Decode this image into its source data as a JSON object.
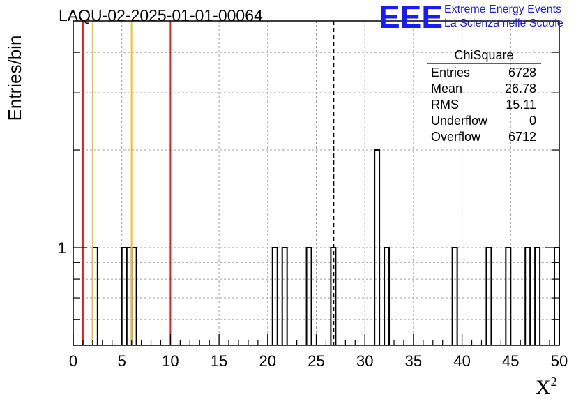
{
  "chart_data": {
    "type": "bar",
    "title": "LAQU-02-2025-01-01-00064",
    "xlabel": "X",
    "xlabel_sup": "2",
    "ylabel": "Entries/bin",
    "xlim": [
      0,
      50
    ],
    "ylim": [
      0.5,
      5
    ],
    "y_scale": "log",
    "grid": true,
    "x_ticks": [
      "0",
      "5",
      "10",
      "15",
      "20",
      "25",
      "30",
      "35",
      "40",
      "45",
      "50"
    ],
    "y_tick_labels": [
      {
        "value": 1,
        "label": "1"
      }
    ],
    "bin_width": 0.5,
    "bins": [
      {
        "x": 2.0,
        "count": 1
      },
      {
        "x": 5.0,
        "count": 1
      },
      {
        "x": 5.5,
        "count": 1
      },
      {
        "x": 6.0,
        "count": 1
      },
      {
        "x": 20.5,
        "count": 1
      },
      {
        "x": 21.5,
        "count": 1
      },
      {
        "x": 24.0,
        "count": 1
      },
      {
        "x": 26.5,
        "count": 1
      },
      {
        "x": 31.0,
        "count": 2
      },
      {
        "x": 32.0,
        "count": 1
      },
      {
        "x": 39.0,
        "count": 1
      },
      {
        "x": 42.5,
        "count": 1
      },
      {
        "x": 44.5,
        "count": 1
      },
      {
        "x": 46.5,
        "count": 1
      },
      {
        "x": 47.5,
        "count": 1
      },
      {
        "x": 49.5,
        "count": 1
      }
    ],
    "vertical_lines": [
      {
        "x": 1.0,
        "color": "#e02020",
        "style": "solid"
      },
      {
        "x": 2.0,
        "color": "#f0c020",
        "style": "solid"
      },
      {
        "x": 6.0,
        "color": "#f0c020",
        "style": "solid"
      },
      {
        "x": 10.0,
        "color": "#e02020",
        "style": "solid"
      },
      {
        "x": 26.78,
        "color": "#000000",
        "style": "dashed"
      }
    ],
    "stats_box": {
      "title": "ChiSquare",
      "rows": [
        {
          "label": "Entries",
          "value": "6728"
        },
        {
          "label": "Mean",
          "value": "26.78"
        },
        {
          "label": "RMS",
          "value": "15.11"
        },
        {
          "label": "Underflow",
          "value": "0"
        },
        {
          "label": "Overflow",
          "value": "6712"
        }
      ]
    }
  },
  "logo": {
    "big": "EEE",
    "line1": "Extreme Energy Events",
    "line2": "La Scienza nelle Scuole"
  },
  "colors": {
    "logo": "#1a1aff",
    "grid": "#a0a0a0"
  }
}
